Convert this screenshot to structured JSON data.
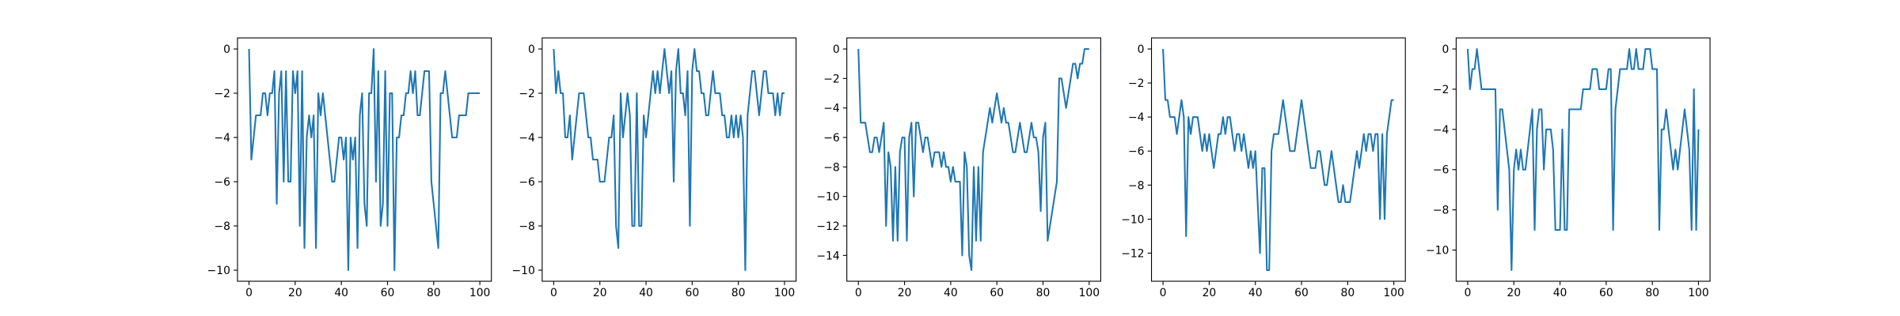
{
  "chart_data": [
    {
      "type": "line",
      "color": "#1f77b4",
      "xlim": [
        -5,
        105
      ],
      "ylim": [
        -10.5,
        0.5
      ],
      "xticks": [
        0,
        20,
        40,
        60,
        80,
        100
      ],
      "yticks": [
        {
          "value": 0,
          "label": "0"
        },
        {
          "value": -2,
          "label": "−2"
        },
        {
          "value": -4,
          "label": "−4"
        },
        {
          "value": -6,
          "label": "−6"
        },
        {
          "value": -8,
          "label": "−8"
        },
        {
          "value": -10,
          "label": "−10"
        }
      ],
      "x": [
        0,
        1,
        2,
        3,
        4,
        5,
        6,
        7,
        8,
        9,
        10,
        11,
        12,
        13,
        14,
        15,
        16,
        17,
        18,
        19,
        20,
        21,
        22,
        23,
        24,
        25,
        26,
        27,
        28,
        29,
        30,
        31,
        32,
        33,
        34,
        35,
        36,
        37,
        38,
        39,
        40,
        41,
        42,
        43,
        44,
        45,
        46,
        47,
        48,
        49,
        50,
        51,
        52,
        53,
        54,
        55,
        56,
        57,
        58,
        59,
        60,
        61,
        62,
        63,
        64,
        65,
        66,
        67,
        68,
        69,
        70,
        71,
        72,
        73,
        74,
        75,
        76,
        77,
        78,
        79,
        80,
        81,
        82,
        83,
        84,
        85,
        86,
        87,
        88,
        89,
        90,
        91,
        92,
        93,
        94,
        95,
        96,
        97,
        98,
        99,
        100
      ],
      "values": [
        0,
        -5,
        -4,
        -3,
        -3,
        -3,
        -2,
        -2,
        -3,
        -2,
        -2,
        -1,
        -7,
        -2,
        -1,
        -6,
        -1,
        -6,
        -6,
        -1,
        -2,
        -1,
        -8,
        -1,
        -9,
        -4,
        -3,
        -4,
        -3,
        -9,
        -2,
        -3,
        -2,
        -3,
        -4,
        -5,
        -6,
        -6,
        -5,
        -4,
        -4,
        -5,
        -4,
        -10,
        -4,
        -5,
        -4,
        -9,
        -3,
        -2,
        -7,
        -8,
        -2,
        -2,
        0,
        -6,
        -1,
        -8,
        -7,
        -1,
        -8,
        -2,
        -2,
        -10,
        -4,
        -4,
        -3,
        -3,
        -2,
        -2,
        -1,
        -2,
        -1,
        -3,
        -3,
        -2,
        -1,
        -1,
        -1,
        -6,
        -7,
        -8,
        -9,
        -2,
        -2,
        -1,
        -2,
        -3,
        -4,
        -4,
        -4,
        -3,
        -3,
        -3,
        -3,
        -2,
        -2,
        -2,
        -2,
        -2,
        -2
      ]
    },
    {
      "type": "line",
      "color": "#1f77b4",
      "xlim": [
        -5,
        105
      ],
      "ylim": [
        -10.5,
        0.5
      ],
      "xticks": [
        0,
        20,
        40,
        60,
        80,
        100
      ],
      "yticks": [
        {
          "value": 0,
          "label": "0"
        },
        {
          "value": -2,
          "label": "−2"
        },
        {
          "value": -4,
          "label": "−4"
        },
        {
          "value": -6,
          "label": "−6"
        },
        {
          "value": -8,
          "label": "−8"
        },
        {
          "value": -10,
          "label": "−10"
        }
      ],
      "x": [
        0,
        1,
        2,
        3,
        4,
        5,
        6,
        7,
        8,
        9,
        10,
        11,
        12,
        13,
        14,
        15,
        16,
        17,
        18,
        19,
        20,
        21,
        22,
        23,
        24,
        25,
        26,
        27,
        28,
        29,
        30,
        31,
        32,
        33,
        34,
        35,
        36,
        37,
        38,
        39,
        40,
        41,
        42,
        43,
        44,
        45,
        46,
        47,
        48,
        49,
        50,
        51,
        52,
        53,
        54,
        55,
        56,
        57,
        58,
        59,
        60,
        61,
        62,
        63,
        64,
        65,
        66,
        67,
        68,
        69,
        70,
        71,
        72,
        73,
        74,
        75,
        76,
        77,
        78,
        79,
        80,
        81,
        82,
        83,
        84,
        85,
        86,
        87,
        88,
        89,
        90,
        91,
        92,
        93,
        94,
        95,
        96,
        97,
        98,
        99,
        100
      ],
      "values": [
        0,
        -2,
        -1,
        -2,
        -2,
        -4,
        -4,
        -3,
        -5,
        -4,
        -3,
        -2,
        -2,
        -2,
        -3,
        -4,
        -4,
        -5,
        -5,
        -5,
        -6,
        -6,
        -6,
        -5,
        -4,
        -4,
        -3,
        -8,
        -9,
        -2,
        -4,
        -3,
        -2,
        -3,
        -8,
        -8,
        -2,
        -8,
        -8,
        -3,
        -4,
        -3,
        -2,
        -1,
        -2,
        -1,
        -2,
        -1,
        0,
        -1,
        -2,
        -1,
        -6,
        -1,
        0,
        -2,
        -2,
        -3,
        -1,
        -8,
        -1,
        0,
        -1,
        -1,
        -2,
        -2,
        -3,
        -3,
        -2,
        -1,
        -2,
        -2,
        -2,
        -3,
        -3,
        -4,
        -4,
        -3,
        -4,
        -3,
        -4,
        -3,
        -4,
        -10,
        -3,
        -2,
        -1,
        -1,
        -2,
        -3,
        -2,
        -1,
        -1,
        -2,
        -2,
        -2,
        -3,
        -2,
        -3,
        -2,
        -2
      ]
    },
    {
      "type": "line",
      "color": "#1f77b4",
      "xlim": [
        -5,
        105
      ],
      "ylim": [
        -15.75,
        0.75
      ],
      "xticks": [
        0,
        20,
        40,
        60,
        80,
        100
      ],
      "yticks": [
        {
          "value": 0,
          "label": "0"
        },
        {
          "value": -2,
          "label": "−2"
        },
        {
          "value": -4,
          "label": "−4"
        },
        {
          "value": -6,
          "label": "−6"
        },
        {
          "value": -8,
          "label": "−8"
        },
        {
          "value": -10,
          "label": "−10"
        },
        {
          "value": -12,
          "label": "−12"
        },
        {
          "value": -14,
          "label": "−14"
        }
      ],
      "x": [
        0,
        1,
        2,
        3,
        4,
        5,
        6,
        7,
        8,
        9,
        10,
        11,
        12,
        13,
        14,
        15,
        16,
        17,
        18,
        19,
        20,
        21,
        22,
        23,
        24,
        25,
        26,
        27,
        28,
        29,
        30,
        31,
        32,
        33,
        34,
        35,
        36,
        37,
        38,
        39,
        40,
        41,
        42,
        43,
        44,
        45,
        46,
        47,
        48,
        49,
        50,
        51,
        52,
        53,
        54,
        55,
        56,
        57,
        58,
        59,
        60,
        61,
        62,
        63,
        64,
        65,
        66,
        67,
        68,
        69,
        70,
        71,
        72,
        73,
        74,
        75,
        76,
        77,
        78,
        79,
        80,
        81,
        82,
        83,
        84,
        85,
        86,
        87,
        88,
        89,
        90,
        91,
        92,
        93,
        94,
        95,
        96,
        97,
        98,
        99,
        100
      ],
      "values": [
        0,
        -5,
        -5,
        -5,
        -6,
        -7,
        -7,
        -6,
        -6,
        -7,
        -6,
        -5,
        -12,
        -7,
        -8,
        -13,
        -8,
        -13,
        -7,
        -6,
        -6,
        -13,
        -6,
        -5,
        -10,
        -5,
        -5,
        -6,
        -7,
        -6,
        -6,
        -7,
        -8,
        -7,
        -7,
        -7,
        -8,
        -7,
        -8,
        -8,
        -9,
        -8,
        -9,
        -9,
        -9,
        -14,
        -7,
        -8,
        -14,
        -15,
        -8,
        -13,
        -8,
        -13,
        -7,
        -6,
        -5,
        -4,
        -5,
        -4,
        -3,
        -4,
        -5,
        -4,
        -5,
        -5,
        -6,
        -7,
        -7,
        -6,
        -5,
        -6,
        -7,
        -7,
        -6,
        -5,
        -6,
        -6,
        -7,
        -11,
        -6,
        -5,
        -13,
        -12,
        -11,
        -10,
        -9,
        -2,
        -2,
        -3,
        -4,
        -3,
        -2,
        -1,
        -1,
        -2,
        -1,
        -1,
        0,
        0,
        0
      ]
    },
    {
      "type": "line",
      "color": "#1f77b4",
      "xlim": [
        -5,
        105
      ],
      "ylim": [
        -13.65,
        0.65
      ],
      "xticks": [
        0,
        20,
        40,
        60,
        80,
        100
      ],
      "yticks": [
        {
          "value": 0,
          "label": "0"
        },
        {
          "value": -2,
          "label": "−2"
        },
        {
          "value": -4,
          "label": "−4"
        },
        {
          "value": -6,
          "label": "−6"
        },
        {
          "value": -8,
          "label": "−8"
        },
        {
          "value": -10,
          "label": "−10"
        },
        {
          "value": -12,
          "label": "−12"
        }
      ],
      "x": [
        0,
        1,
        2,
        3,
        4,
        5,
        6,
        7,
        8,
        9,
        10,
        11,
        12,
        13,
        14,
        15,
        16,
        17,
        18,
        19,
        20,
        21,
        22,
        23,
        24,
        25,
        26,
        27,
        28,
        29,
        30,
        31,
        32,
        33,
        34,
        35,
        36,
        37,
        38,
        39,
        40,
        41,
        42,
        43,
        44,
        45,
        46,
        47,
        48,
        49,
        50,
        51,
        52,
        53,
        54,
        55,
        56,
        57,
        58,
        59,
        60,
        61,
        62,
        63,
        64,
        65,
        66,
        67,
        68,
        69,
        70,
        71,
        72,
        73,
        74,
        75,
        76,
        77,
        78,
        79,
        80,
        81,
        82,
        83,
        84,
        85,
        86,
        87,
        88,
        89,
        90,
        91,
        92,
        93,
        94,
        95,
        96,
        97,
        98,
        99,
        100
      ],
      "values": [
        0,
        -3,
        -3,
        -4,
        -4,
        -4,
        -5,
        -4,
        -3,
        -4,
        -11,
        -4,
        -5,
        -4,
        -4,
        -4,
        -5,
        -6,
        -5,
        -6,
        -5,
        -6,
        -7,
        -6,
        -5,
        -5,
        -4,
        -5,
        -4,
        -4,
        -5,
        -6,
        -5,
        -5,
        -6,
        -5,
        -6,
        -7,
        -6,
        -7,
        -6,
        -9,
        -12,
        -7,
        -7,
        -13,
        -13,
        -6,
        -5,
        -5,
        -5,
        -4,
        -3,
        -4,
        -5,
        -6,
        -6,
        -6,
        -5,
        -4,
        -3,
        -4,
        -5,
        -6,
        -7,
        -7,
        -7,
        -6,
        -6,
        -7,
        -8,
        -8,
        -7,
        -6,
        -7,
        -8,
        -9,
        -9,
        -8,
        -9,
        -9,
        -9,
        -8,
        -7,
        -6,
        -7,
        -6,
        -5,
        -6,
        -5,
        -5,
        -6,
        -5,
        -5,
        -10,
        -5,
        -10,
        -5,
        -4,
        -3,
        -3
      ]
    },
    {
      "type": "line",
      "color": "#1f77b4",
      "xlim": [
        -5,
        105
      ],
      "ylim": [
        -11.55,
        0.55
      ],
      "xticks": [
        0,
        20,
        40,
        60,
        80,
        100
      ],
      "yticks": [
        {
          "value": 0,
          "label": "0"
        },
        {
          "value": -2,
          "label": "−2"
        },
        {
          "value": -4,
          "label": "−4"
        },
        {
          "value": -6,
          "label": "−6"
        },
        {
          "value": -8,
          "label": "−8"
        },
        {
          "value": -10,
          "label": "−10"
        }
      ],
      "x": [
        0,
        1,
        2,
        3,
        4,
        5,
        6,
        7,
        8,
        9,
        10,
        11,
        12,
        13,
        14,
        15,
        16,
        17,
        18,
        19,
        20,
        21,
        22,
        23,
        24,
        25,
        26,
        27,
        28,
        29,
        30,
        31,
        32,
        33,
        34,
        35,
        36,
        37,
        38,
        39,
        40,
        41,
        42,
        43,
        44,
        45,
        46,
        47,
        48,
        49,
        50,
        51,
        52,
        53,
        54,
        55,
        56,
        57,
        58,
        59,
        60,
        61,
        62,
        63,
        64,
        65,
        66,
        67,
        68,
        69,
        70,
        71,
        72,
        73,
        74,
        75,
        76,
        77,
        78,
        79,
        80,
        81,
        82,
        83,
        84,
        85,
        86,
        87,
        88,
        89,
        90,
        91,
        92,
        93,
        94,
        95,
        96,
        97,
        98,
        99,
        100
      ],
      "values": [
        0,
        -2,
        -1,
        -1,
        0,
        -1,
        -2,
        -2,
        -2,
        -2,
        -2,
        -2,
        -2,
        -8,
        -3,
        -3,
        -4,
        -5,
        -6,
        -11,
        -6,
        -5,
        -6,
        -5,
        -6,
        -6,
        -5,
        -4,
        -3,
        -9,
        -4,
        -3,
        -3,
        -6,
        -4,
        -4,
        -4,
        -5,
        -9,
        -9,
        -9,
        -4,
        -9,
        -9,
        -3,
        -3,
        -3,
        -3,
        -3,
        -3,
        -2,
        -2,
        -2,
        -2,
        -1,
        -1,
        -1,
        -2,
        -2,
        -2,
        -2,
        -1,
        -1,
        -9,
        -3,
        -2,
        -1,
        -1,
        -1,
        -1,
        0,
        -1,
        -1,
        0,
        -1,
        -1,
        -1,
        0,
        0,
        0,
        -1,
        -1,
        -1,
        -9,
        -4,
        -4,
        -3,
        -4,
        -5,
        -6,
        -5,
        -6,
        -5,
        -4,
        -3,
        -4,
        -5,
        -9,
        -2,
        -9,
        -4
      ]
    }
  ]
}
